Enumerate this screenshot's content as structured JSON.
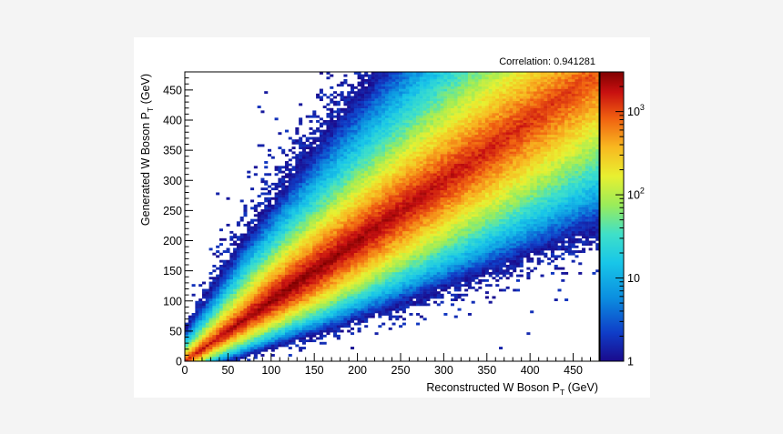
{
  "chart_data": {
    "type": "heatmap",
    "annotation": "Correlation: 0.941281",
    "xlabel_main": "Reconstructed W Boson P",
    "xlabel_sub": "T",
    "xlabel_tail": " (GeV)",
    "ylabel_main": "Generated W Boson P",
    "ylabel_sub": "T",
    "ylabel_tail": " (GeV)",
    "xlim": [
      0,
      480
    ],
    "ylim": [
      0,
      480
    ],
    "x_ticks": [
      0,
      50,
      100,
      150,
      200,
      250,
      300,
      350,
      400,
      450
    ],
    "y_ticks": [
      0,
      50,
      100,
      150,
      200,
      250,
      300,
      350,
      400,
      450
    ],
    "colorbar": {
      "scale": "log",
      "range": [
        1,
        3000
      ],
      "tick_labels": [
        {
          "value": 1,
          "base": "1",
          "exp": ""
        },
        {
          "value": 10,
          "base": "10",
          "exp": ""
        },
        {
          "value": 100,
          "base": "10",
          "exp": "2"
        },
        {
          "value": 1000,
          "base": "10",
          "exp": "3"
        }
      ]
    },
    "distribution": {
      "description_free": true,
      "diagonal_peak_count": 3000,
      "spread_min_gev": 12,
      "spread_fraction": 0.22,
      "peak_pt_gev": 120
    },
    "palette": [
      "#1a0a8c",
      "#0f3ec8",
      "#0b8fe0",
      "#18c6e8",
      "#3fe0c8",
      "#9aec5a",
      "#e8f030",
      "#f8b820",
      "#f06010",
      "#c81010",
      "#800000"
    ]
  }
}
